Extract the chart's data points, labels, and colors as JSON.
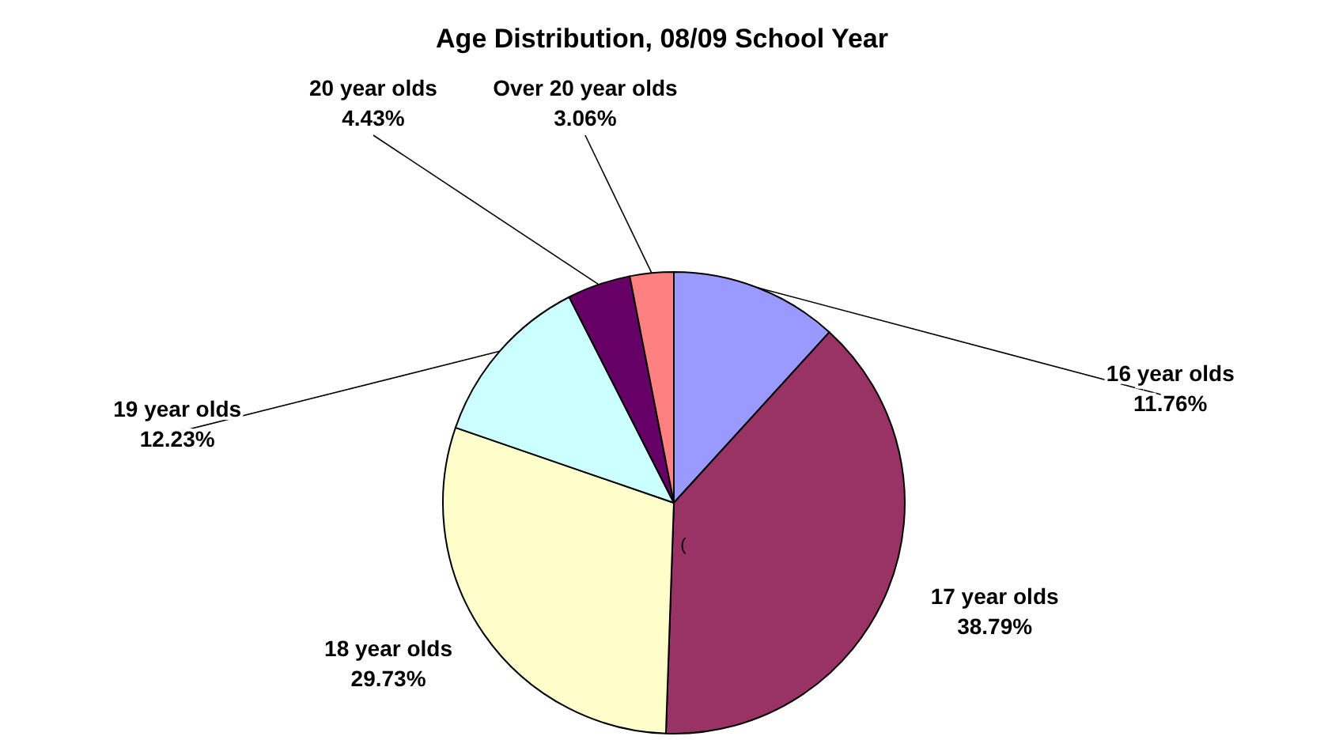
{
  "chart_data": {
    "type": "pie",
    "title": "Age Distribution, 08/09 School Year",
    "categories": [
      "16 year olds",
      "17 year olds",
      "18 year olds",
      "19 year olds",
      "20 year olds",
      "Over 20 year olds"
    ],
    "values": [
      11.76,
      38.79,
      29.73,
      12.23,
      4.43,
      3.06
    ],
    "colors": [
      "#9999ff",
      "#993366",
      "#ffffcc",
      "#ccffff",
      "#660066",
      "#ff8080"
    ],
    "value_labels": [
      "11.76%",
      "38.79%",
      "29.73%",
      "12.23%",
      "4.43%",
      "3.06%"
    ],
    "annotations": [
      "("
    ]
  }
}
